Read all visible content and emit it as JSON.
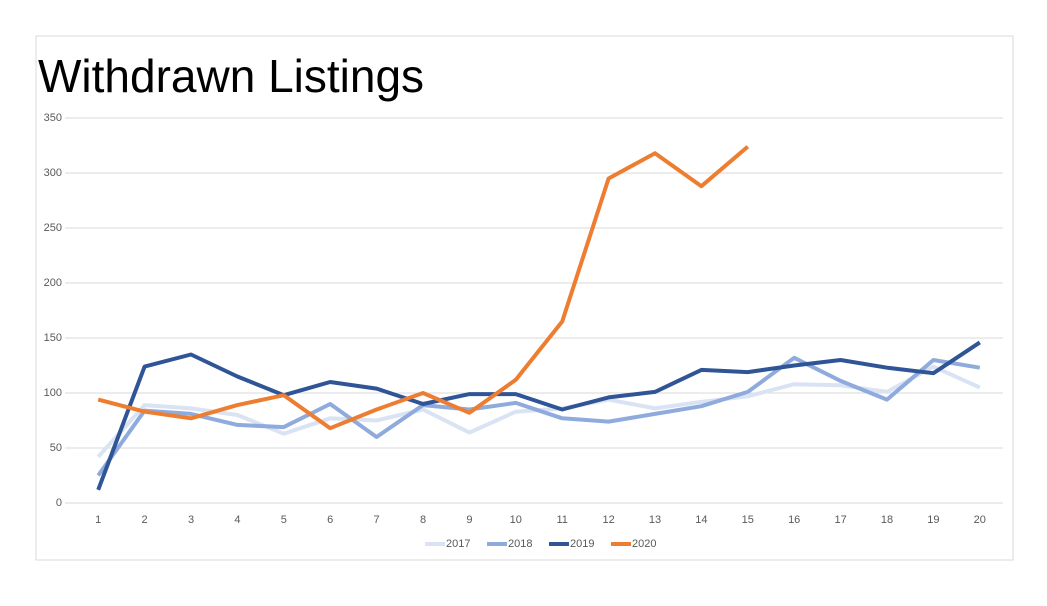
{
  "chart_data": {
    "type": "line",
    "title": "Withdrawn Listings",
    "categories": [
      1,
      2,
      3,
      4,
      5,
      6,
      7,
      8,
      9,
      10,
      11,
      12,
      13,
      14,
      15,
      16,
      17,
      18,
      19,
      20
    ],
    "series": [
      {
        "name": "2017",
        "color": "#dae3f3",
        "values": [
          42,
          89,
          86,
          80,
          63,
          77,
          75,
          85,
          64,
          83,
          86,
          94,
          86,
          92,
          97,
          108,
          107,
          101,
          124,
          105
        ]
      },
      {
        "name": "2018",
        "color": "#8faadc",
        "values": [
          25,
          84,
          81,
          71,
          69,
          90,
          60,
          89,
          85,
          91,
          77,
          74,
          81,
          88,
          101,
          132,
          111,
          94,
          130,
          123
        ]
      },
      {
        "name": "2019",
        "color": "#2f5597",
        "values": [
          12,
          124,
          135,
          115,
          98,
          110,
          104,
          90,
          99,
          99,
          85,
          96,
          101,
          121,
          119,
          125,
          130,
          123,
          118,
          146
        ]
      },
      {
        "name": "2020",
        "color": "#ed7d31",
        "values": [
          94,
          83,
          77,
          89,
          98,
          68,
          85,
          100,
          82,
          112,
          165,
          295,
          318,
          288,
          324,
          null,
          null,
          null,
          null,
          null
        ]
      }
    ],
    "ylim": [
      0,
      350
    ],
    "yticks": [
      0,
      50,
      100,
      150,
      200,
      250,
      300,
      350
    ],
    "grid": true,
    "legend": "bottom"
  }
}
